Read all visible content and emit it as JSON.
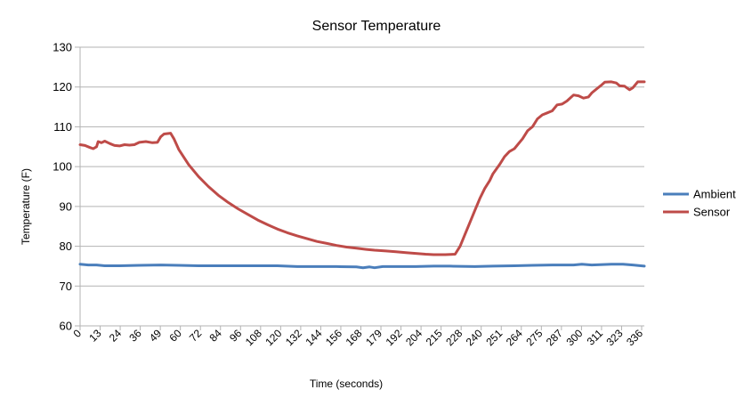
{
  "chart_data": {
    "type": "line",
    "title": "Sensor Temperature",
    "xlabel": "Time (seconds)",
    "ylabel": "Temperature (F)",
    "ylim": [
      60,
      130
    ],
    "yticks": [
      60,
      70,
      80,
      90,
      100,
      110,
      120,
      130
    ],
    "xlim": [
      0,
      343
    ],
    "xticks": [
      "0",
      "13",
      "24",
      "36",
      "49",
      "60",
      "72",
      "84",
      "96",
      "108",
      "120",
      "132",
      "144",
      "156",
      "168",
      "179",
      "192",
      "204",
      "215",
      "228",
      "240",
      "251",
      "264",
      "275",
      "287",
      "300",
      "311",
      "323",
      "336"
    ],
    "grid": true,
    "legend": "right",
    "series": [
      {
        "name": "Ambient",
        "color": "#4a7ebb",
        "points": [
          [
            0,
            75.5
          ],
          [
            5,
            75.3
          ],
          [
            10,
            75.3
          ],
          [
            15,
            75.1
          ],
          [
            24,
            75.1
          ],
          [
            36,
            75.2
          ],
          [
            49,
            75.3
          ],
          [
            60,
            75.2
          ],
          [
            72,
            75.1
          ],
          [
            96,
            75.1
          ],
          [
            120,
            75.1
          ],
          [
            132,
            74.9
          ],
          [
            156,
            74.9
          ],
          [
            168,
            74.8
          ],
          [
            172,
            74.6
          ],
          [
            176,
            74.8
          ],
          [
            179,
            74.6
          ],
          [
            184,
            74.9
          ],
          [
            204,
            74.9
          ],
          [
            215,
            75.0
          ],
          [
            225,
            75.0
          ],
          [
            240,
            74.9
          ],
          [
            251,
            75.0
          ],
          [
            264,
            75.1
          ],
          [
            275,
            75.2
          ],
          [
            287,
            75.3
          ],
          [
            300,
            75.3
          ],
          [
            305,
            75.5
          ],
          [
            311,
            75.3
          ],
          [
            323,
            75.5
          ],
          [
            330,
            75.5
          ],
          [
            336,
            75.3
          ],
          [
            343,
            75.0
          ]
        ]
      },
      {
        "name": "Sensor",
        "color": "#be4b48",
        "points": [
          [
            0,
            105.5
          ],
          [
            3,
            105.3
          ],
          [
            6,
            104.8
          ],
          [
            8,
            104.5
          ],
          [
            10,
            105.0
          ],
          [
            11,
            106.3
          ],
          [
            13,
            106.0
          ],
          [
            15,
            106.4
          ],
          [
            18,
            105.8
          ],
          [
            21,
            105.3
          ],
          [
            24,
            105.2
          ],
          [
            27,
            105.5
          ],
          [
            30,
            105.4
          ],
          [
            33,
            105.5
          ],
          [
            36,
            106.1
          ],
          [
            40,
            106.3
          ],
          [
            44,
            106.0
          ],
          [
            47,
            106.1
          ],
          [
            49,
            107.5
          ],
          [
            51,
            108.2
          ],
          [
            55,
            108.4
          ],
          [
            57,
            107.0
          ],
          [
            60,
            104.3
          ],
          [
            66,
            100.5
          ],
          [
            72,
            97.5
          ],
          [
            78,
            95.0
          ],
          [
            84,
            92.8
          ],
          [
            90,
            91.0
          ],
          [
            96,
            89.4
          ],
          [
            102,
            88.0
          ],
          [
            108,
            86.6
          ],
          [
            114,
            85.4
          ],
          [
            120,
            84.3
          ],
          [
            126,
            83.4
          ],
          [
            132,
            82.6
          ],
          [
            138,
            81.9
          ],
          [
            144,
            81.2
          ],
          [
            150,
            80.7
          ],
          [
            156,
            80.2
          ],
          [
            162,
            79.8
          ],
          [
            168,
            79.5
          ],
          [
            174,
            79.2
          ],
          [
            179,
            79.0
          ],
          [
            186,
            78.8
          ],
          [
            192,
            78.6
          ],
          [
            198,
            78.4
          ],
          [
            204,
            78.2
          ],
          [
            210,
            78.0
          ],
          [
            215,
            77.9
          ],
          [
            222,
            77.9
          ],
          [
            228,
            78.0
          ],
          [
            231,
            80.0
          ],
          [
            234,
            83.0
          ],
          [
            237,
            86.0
          ],
          [
            240,
            89.0
          ],
          [
            243,
            92.0
          ],
          [
            246,
            94.5
          ],
          [
            249,
            96.5
          ],
          [
            251,
            98.2
          ],
          [
            255,
            100.5
          ],
          [
            258,
            102.5
          ],
          [
            261,
            103.8
          ],
          [
            264,
            104.5
          ],
          [
            267,
            106.0
          ],
          [
            269,
            107.0
          ],
          [
            272,
            109.0
          ],
          [
            275,
            110.0
          ],
          [
            278,
            112.0
          ],
          [
            281,
            113.0
          ],
          [
            284,
            113.5
          ],
          [
            287,
            114.0
          ],
          [
            290,
            115.5
          ],
          [
            293,
            115.7
          ],
          [
            296,
            116.5
          ],
          [
            300,
            118.0
          ],
          [
            303,
            117.8
          ],
          [
            306,
            117.2
          ],
          [
            309,
            117.5
          ],
          [
            311,
            118.5
          ],
          [
            314,
            119.5
          ],
          [
            317,
            120.5
          ],
          [
            319,
            121.2
          ],
          [
            323,
            121.3
          ],
          [
            326,
            121.0
          ],
          [
            328,
            120.3
          ],
          [
            331,
            120.2
          ],
          [
            334,
            119.3
          ],
          [
            336,
            119.8
          ],
          [
            339,
            121.3
          ],
          [
            343,
            121.3
          ]
        ]
      }
    ]
  }
}
